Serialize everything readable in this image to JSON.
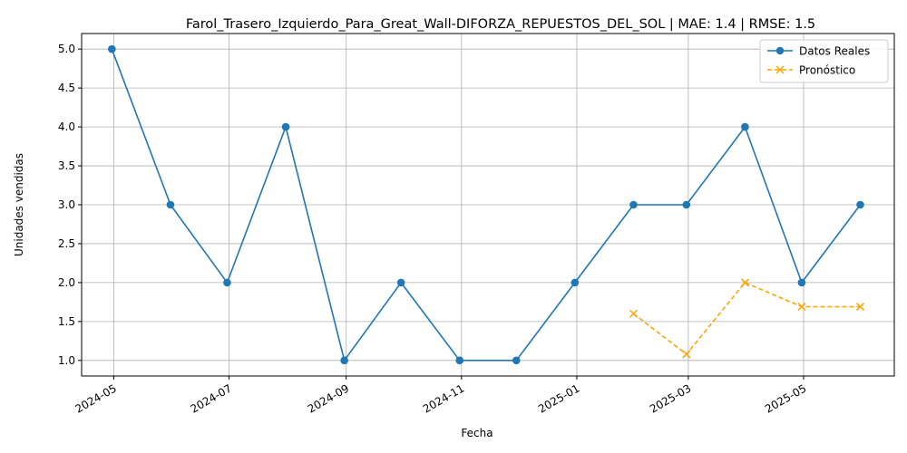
{
  "chart_data": {
    "type": "line",
    "title": "Farol_Trasero_Izquierdo_Para_Great_Wall-DIFORZA_REPUESTOS_DEL_SOL | MAE: 1.4 | RMSE: 1.5",
    "xlabel": "Fecha",
    "ylabel": "Unidades vendidas",
    "x_ticks": [
      "2024-05",
      "2024-07",
      "2024-09",
      "2024-11",
      "2025-01",
      "2025-03",
      "2025-05"
    ],
    "y_ticks": [
      "1.0",
      "1.5",
      "2.0",
      "2.5",
      "3.0",
      "3.5",
      "4.0",
      "4.5",
      "5.0"
    ],
    "ylim": [
      0.8,
      5.2
    ],
    "xlim": [
      "2024-04-14",
      "2025-06-18"
    ],
    "grid": true,
    "legend_position": "top-right",
    "series": [
      {
        "name": "Datos Reales",
        "color": "#1f77b4",
        "style": "solid",
        "marker": "circle",
        "x": [
          "2024-04-30",
          "2024-05-31",
          "2024-06-30",
          "2024-07-31",
          "2024-08-31",
          "2024-09-30",
          "2024-10-31",
          "2024-11-30",
          "2024-12-31",
          "2025-01-31",
          "2025-02-28",
          "2025-03-31",
          "2025-04-30",
          "2025-05-31"
        ],
        "values": [
          5,
          3,
          2,
          4,
          1,
          2,
          1,
          1,
          2,
          3,
          3,
          4,
          2,
          3
        ]
      },
      {
        "name": "Pronóstico",
        "color": "#ffa500",
        "style": "dashed",
        "marker": "x",
        "x": [
          "2025-01-31",
          "2025-02-28",
          "2025-03-31",
          "2025-04-30",
          "2025-05-31"
        ],
        "values": [
          1.6,
          1.08,
          2.0,
          1.69,
          1.69
        ]
      }
    ]
  }
}
